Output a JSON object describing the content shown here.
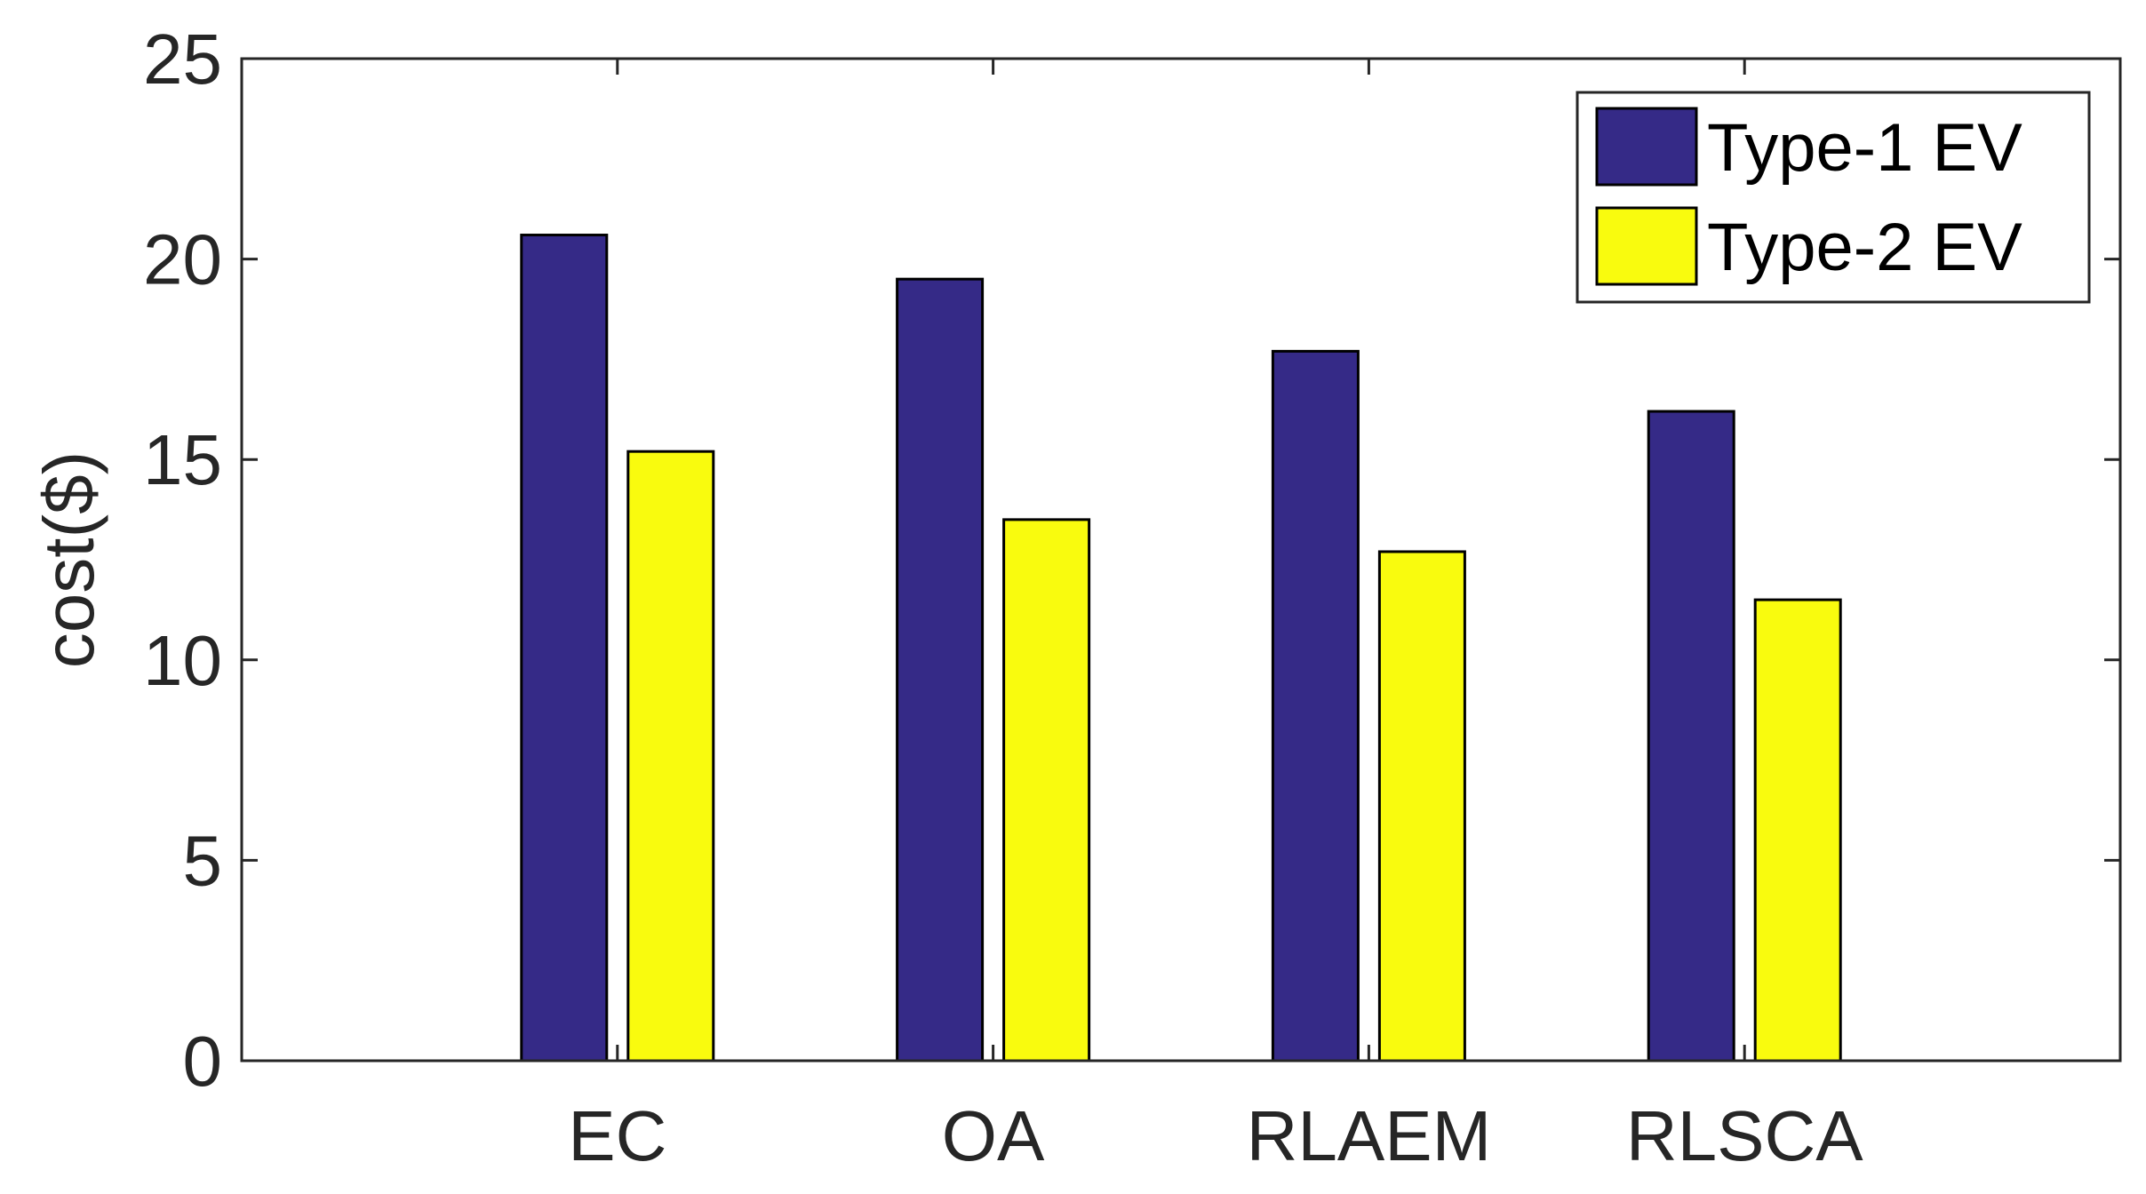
{
  "chart_data": {
    "type": "bar",
    "title": "",
    "xlabel": "",
    "ylabel": "cost($)",
    "categories": [
      "EC",
      "OA",
      "RLAEM",
      "RLSCA"
    ],
    "series": [
      {
        "name": "Type-1 EV",
        "color": "#352a87",
        "values": [
          20.6,
          19.5,
          17.7,
          16.2
        ]
      },
      {
        "name": "Type-2 EV",
        "color": "#f9fb0e",
        "values": [
          15.2,
          13.5,
          12.7,
          11.5
        ]
      }
    ],
    "ylim": [
      0,
      25
    ],
    "yticks": [
      0,
      5,
      10,
      15,
      20,
      25
    ],
    "grid": false,
    "legend": {
      "placement": "top-right"
    }
  }
}
